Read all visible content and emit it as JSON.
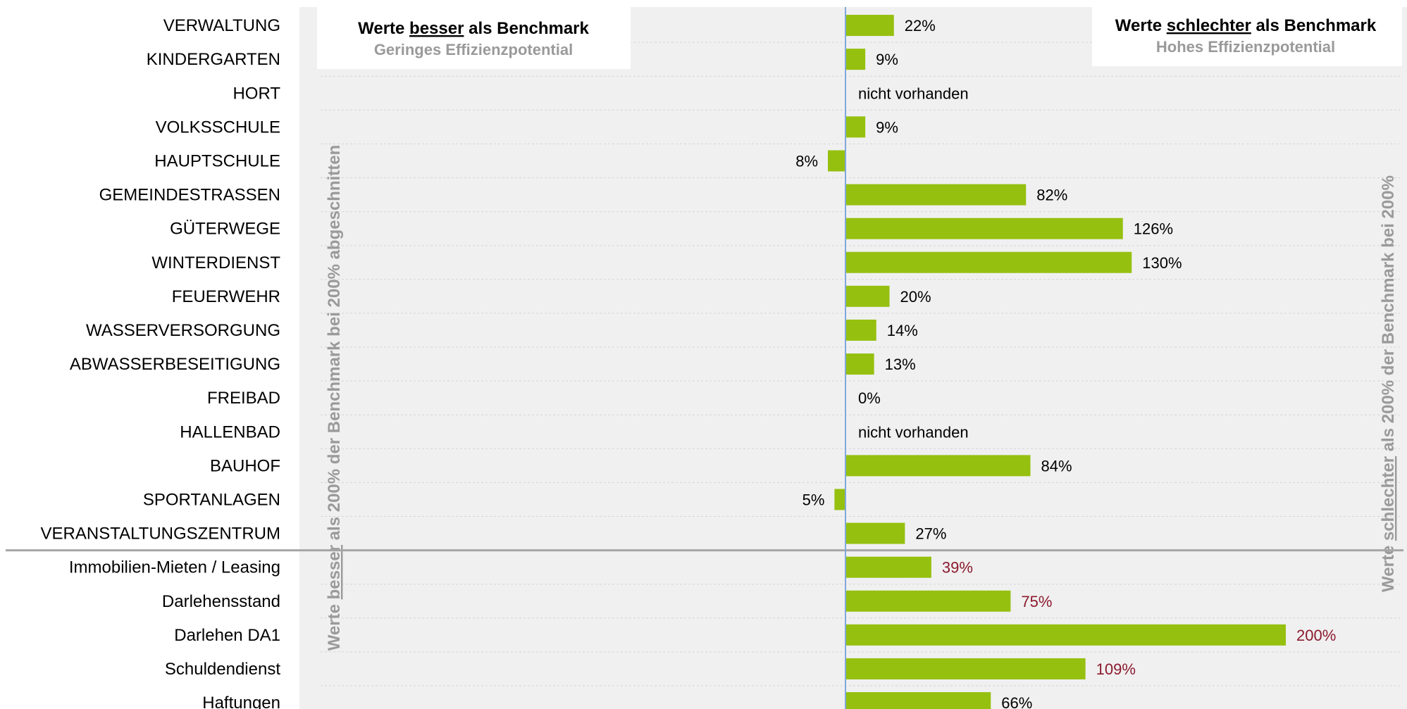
{
  "legend_left": {
    "prefix": "Werte ",
    "emph": "besser",
    "suffix": " als Benchmark",
    "sub": "Geringes Effizienzpotential"
  },
  "legend_right": {
    "prefix": "Werte ",
    "emph": "schlechter",
    "suffix": " als Benchmark",
    "sub": "Hohes Effizienzpotential"
  },
  "note_left": {
    "prefix": "Werte ",
    "emph": "besser",
    "suffix": " als 200% der Benchmark bei 200% abgeschnitten"
  },
  "note_right": {
    "prefix": "Werte ",
    "emph": "schlechter",
    "suffix": " als 200% der Benchmark bei 200%"
  },
  "colors": {
    "bar": "#95C00F",
    "label": "#000000",
    "label_alt": "#8B1A2E",
    "band": "#F0F0F0",
    "axis": "#7FA8DC",
    "divider": "#A6A6A6"
  },
  "chart_data": {
    "type": "bar",
    "orientation": "horizontal",
    "xlim": [
      -200,
      200
    ],
    "categories": [
      "VERWALTUNG",
      "KINDERGARTEN",
      "HORT",
      "VOLKSSCHULE",
      "HAUPTSCHULE",
      "GEMEINDESTRASSEN",
      "GÜTERWEGE",
      "WINTERDIENST",
      "FEUERWEHR",
      "WASSERVERSORGUNG",
      "ABWASSERBESEITIGUNG",
      "FREIBAD",
      "HALLENBAD",
      "BAUHOF",
      "SPORTANLAGEN",
      "VERANSTALTUNGSZENTRUM",
      "Immobilien-Mieten / Leasing",
      "Darlehensstand",
      "Darlehen DA1",
      "Schuldendienst",
      "Haftungen"
    ],
    "values": [
      22,
      9,
      null,
      9,
      -8,
      82,
      126,
      130,
      20,
      14,
      13,
      0,
      null,
      84,
      -5,
      27,
      39,
      75,
      200,
      109,
      66
    ],
    "labels": [
      "22%",
      "9%",
      "nicht vorhanden",
      "9%",
      "8%",
      "82%",
      "126%",
      "130%",
      "20%",
      "14%",
      "13%",
      "0%",
      "nicht vorhanden",
      "84%",
      "5%",
      "27%",
      "39%",
      "75%",
      "200%",
      "109%",
      "66%"
    ],
    "label_style": [
      "normal",
      "normal",
      "normal",
      "normal",
      "normal",
      "normal",
      "normal",
      "normal",
      "normal",
      "normal",
      "normal",
      "normal",
      "normal",
      "normal",
      "normal",
      "normal",
      "alt",
      "alt",
      "alt",
      "alt",
      "normal"
    ],
    "group_divider_after": "VERANSTALTUNGSZENTRUM"
  }
}
